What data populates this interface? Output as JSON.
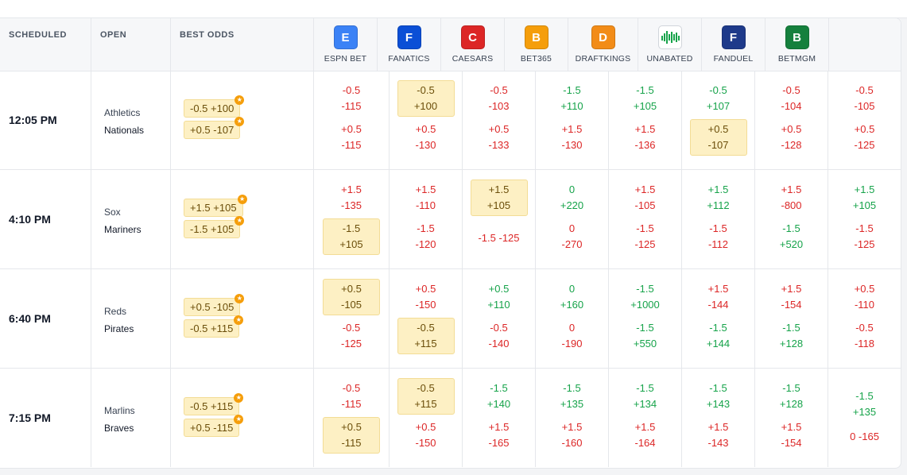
{
  "columns": {
    "scheduled": "SCHEDULED",
    "open": "OPEN",
    "best_odds": "BEST ODDS"
  },
  "books": [
    {
      "name": "ESPN BET",
      "logo": "E",
      "color": "#3b82f6",
      "icon": "espnbet-logo-icon"
    },
    {
      "name": "FANATICS",
      "logo": "F",
      "color": "#0b4fd6",
      "icon": "fanatics-logo-icon"
    },
    {
      "name": "CAESARS",
      "logo": "C",
      "color": "#dc2626",
      "icon": "caesars-logo-icon"
    },
    {
      "name": "BET365",
      "logo": "B",
      "color": "#f59e0b",
      "icon": "bet365-logo-icon"
    },
    {
      "name": "DRAFTKINGS",
      "logo": "D",
      "color": "#f28c18",
      "icon": "draftkings-logo-icon"
    },
    {
      "name": "UNABATED",
      "logo": "",
      "color": "#16a34a",
      "icon": "unabated-logo-icon"
    },
    {
      "name": "FANDUEL",
      "logo": "F",
      "color": "#1e3a8a",
      "icon": "fanduel-logo-icon"
    },
    {
      "name": "BETMGM",
      "logo": "B",
      "color": "#15803d",
      "icon": "betmgm-logo-icon"
    }
  ],
  "games": [
    {
      "time": "12:05 PM",
      "team1": "Athletics",
      "team2": "Nationals",
      "best": [
        "-0.5 +100",
        "+0.5 -107"
      ],
      "odds": [
        [
          [
            "-0.5",
            "-115",
            "r",
            ""
          ],
          [
            "+0.5",
            "-115",
            "r",
            ""
          ]
        ],
        [
          [
            "-0.5",
            "+100",
            "r",
            "hl"
          ],
          [
            "+0.5",
            "-130",
            "r",
            ""
          ]
        ],
        [
          [
            "-0.5",
            "-103",
            "r",
            ""
          ],
          [
            "+0.5",
            "-133",
            "r",
            ""
          ]
        ],
        [
          [
            "-1.5",
            "+110",
            "g",
            ""
          ],
          [
            "+1.5",
            "-130",
            "r",
            ""
          ]
        ],
        [
          [
            "-1.5",
            "+105",
            "g",
            ""
          ],
          [
            "+1.5",
            "-136",
            "r",
            ""
          ]
        ],
        [
          [
            "-0.5",
            "+107",
            "g",
            ""
          ],
          [
            "+0.5",
            "-107",
            "r",
            "hl"
          ]
        ],
        [
          [
            "-0.5",
            "-104",
            "r",
            ""
          ],
          [
            "+0.5",
            "-128",
            "r",
            ""
          ]
        ],
        [
          [
            "-0.5",
            "-105",
            "r",
            ""
          ],
          [
            "+0.5",
            "-125",
            "r",
            ""
          ]
        ]
      ]
    },
    {
      "time": "4:10 PM",
      "team1": "Sox",
      "team2": "Mariners",
      "best": [
        "+1.5 +105",
        "-1.5 +105"
      ],
      "odds": [
        [
          [
            "+1.5",
            "-135",
            "r",
            ""
          ],
          [
            "-1.5",
            "+105",
            "g",
            "hl"
          ]
        ],
        [
          [
            "+1.5",
            "-110",
            "r",
            ""
          ],
          [
            "-1.5",
            "-120",
            "r",
            ""
          ]
        ],
        [
          [
            "+1.5",
            "+105",
            "g",
            "hl"
          ],
          [
            "-1.5 -125",
            "",
            "r",
            ""
          ]
        ],
        [
          [
            "0",
            "+220",
            "g",
            ""
          ],
          [
            "0",
            "-270",
            "r",
            ""
          ]
        ],
        [
          [
            "+1.5",
            "-105",
            "r",
            ""
          ],
          [
            "-1.5",
            "-125",
            "r",
            ""
          ]
        ],
        [
          [
            "+1.5",
            "+112",
            "g",
            ""
          ],
          [
            "-1.5",
            "-112",
            "r",
            ""
          ]
        ],
        [
          [
            "+1.5",
            "-800",
            "r",
            ""
          ],
          [
            "-1.5",
            "+520",
            "g",
            ""
          ]
        ],
        [
          [
            "+1.5",
            "+105",
            "g",
            ""
          ],
          [
            "-1.5",
            "-125",
            "r",
            ""
          ]
        ]
      ]
    },
    {
      "time": "6:40 PM",
      "team1": "Reds",
      "team2": "Pirates",
      "best": [
        "+0.5 -105",
        "-0.5 +115"
      ],
      "odds": [
        [
          [
            "+0.5",
            "-105",
            "r",
            "hl"
          ],
          [
            "-0.5",
            "-125",
            "r",
            ""
          ]
        ],
        [
          [
            "+0.5",
            "-150",
            "r",
            ""
          ],
          [
            "-0.5",
            "+115",
            "g",
            "hl"
          ]
        ],
        [
          [
            "+0.5",
            "+110",
            "g",
            ""
          ],
          [
            "-0.5",
            "-140",
            "r",
            ""
          ]
        ],
        [
          [
            "0",
            "+160",
            "g",
            ""
          ],
          [
            "0",
            "-190",
            "r",
            ""
          ]
        ],
        [
          [
            "-1.5",
            "+1000",
            "g",
            ""
          ],
          [
            "-1.5",
            "+550",
            "g",
            ""
          ]
        ],
        [
          [
            "+1.5",
            "-144",
            "r",
            ""
          ],
          [
            "-1.5",
            "+144",
            "g",
            ""
          ]
        ],
        [
          [
            "+1.5",
            "-154",
            "r",
            ""
          ],
          [
            "-1.5",
            "+128",
            "g",
            ""
          ]
        ],
        [
          [
            "+0.5",
            "-110",
            "r",
            ""
          ],
          [
            "-0.5",
            "-118",
            "r",
            ""
          ]
        ]
      ]
    },
    {
      "time": "7:15 PM",
      "team1": "Marlins",
      "team2": "Braves",
      "best": [
        "-0.5 +115",
        "+0.5 -115"
      ],
      "odds": [
        [
          [
            "-0.5",
            "-115",
            "r",
            ""
          ],
          [
            "+0.5",
            "-115",
            "r",
            "hl"
          ]
        ],
        [
          [
            "-0.5",
            "+115",
            "g",
            "hl"
          ],
          [
            "+0.5",
            "-150",
            "r",
            ""
          ]
        ],
        [
          [
            "-1.5",
            "+140",
            "g",
            ""
          ],
          [
            "+1.5",
            "-165",
            "r",
            ""
          ]
        ],
        [
          [
            "-1.5",
            "+135",
            "g",
            ""
          ],
          [
            "+1.5",
            "-160",
            "r",
            ""
          ]
        ],
        [
          [
            "-1.5",
            "+134",
            "g",
            ""
          ],
          [
            "+1.5",
            "-164",
            "r",
            ""
          ]
        ],
        [
          [
            "-1.5",
            "+143",
            "g",
            ""
          ],
          [
            "+1.5",
            "-143",
            "r",
            ""
          ]
        ],
        [
          [
            "-1.5",
            "+128",
            "g",
            ""
          ],
          [
            "+1.5",
            "-154",
            "r",
            ""
          ]
        ],
        [
          [
            "-1.5",
            "+135",
            "g",
            ""
          ],
          [
            "0 -165",
            "",
            "r",
            ""
          ]
        ]
      ]
    }
  ]
}
